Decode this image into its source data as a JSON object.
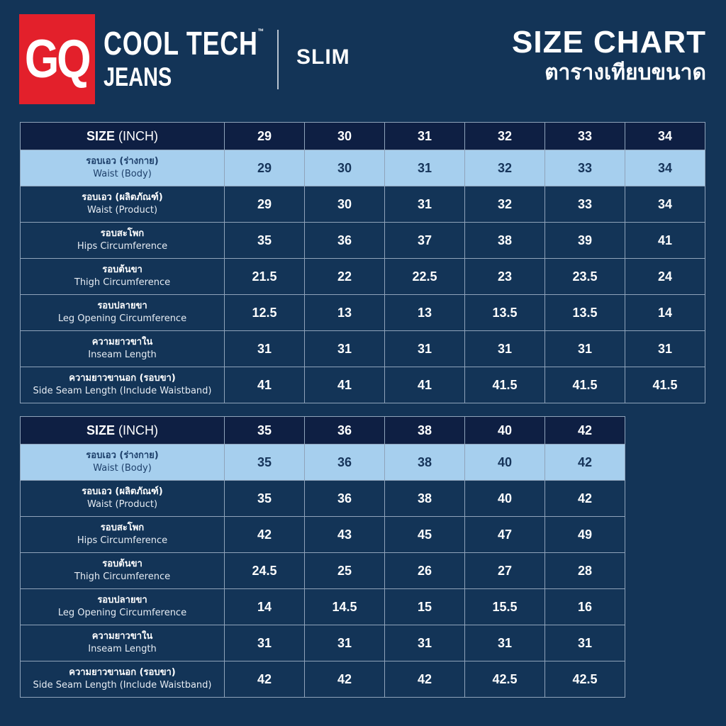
{
  "brand": {
    "logo": "GQ",
    "line1": "COOL TECH",
    "tm": "™",
    "line2": "JEANS",
    "fit": "SLIM"
  },
  "title": {
    "en": "SIZE CHART",
    "th": "ตารางเทียบขนาด"
  },
  "colors": {
    "background": "#133457",
    "header": "#0e1f43",
    "highlight": "#a6cfee",
    "logo_red": "#e3202b"
  },
  "tables": [
    {
      "size_label": "SIZE",
      "unit_label": " (INCH)",
      "sizes": [
        "29",
        "30",
        "31",
        "32",
        "33",
        "34"
      ],
      "rows": [
        {
          "th": "รอบเอว (ร่างกาย)",
          "en": "Waist (Body)",
          "values": [
            "29",
            "30",
            "31",
            "32",
            "33",
            "34"
          ],
          "highlight": true
        },
        {
          "th": "รอบเอว (ผลิตภัณฑ์)",
          "en": "Waist (Product)",
          "values": [
            "29",
            "30",
            "31",
            "32",
            "33",
            "34"
          ]
        },
        {
          "th": "รอบสะโพก",
          "en": "Hips Circumference",
          "values": [
            "35",
            "36",
            "37",
            "38",
            "39",
            "41"
          ]
        },
        {
          "th": "รอบต้นขา",
          "en": "Thigh Circumference",
          "values": [
            "21.5",
            "22",
            "22.5",
            "23",
            "23.5",
            "24"
          ]
        },
        {
          "th": "รอบปลายขา",
          "en": "Leg Opening Circumference",
          "values": [
            "12.5",
            "13",
            "13",
            "13.5",
            "13.5",
            "14"
          ]
        },
        {
          "th": "ความยาวขาใน",
          "en": "Inseam Length",
          "values": [
            "31",
            "31",
            "31",
            "31",
            "31",
            "31"
          ]
        },
        {
          "th": "ความยาวขานอก (รอบขา)",
          "en": "Side Seam Length (Include Waistband)",
          "values": [
            "41",
            "41",
            "41",
            "41.5",
            "41.5",
            "41.5"
          ]
        }
      ]
    },
    {
      "size_label": "SIZE",
      "unit_label": " (INCH)",
      "sizes": [
        "35",
        "36",
        "38",
        "40",
        "42"
      ],
      "rows": [
        {
          "th": "รอบเอว (ร่างกาย)",
          "en": "Waist (Body)",
          "values": [
            "35",
            "36",
            "38",
            "40",
            "42"
          ],
          "highlight": true
        },
        {
          "th": "รอบเอว (ผลิตภัณฑ์)",
          "en": "Waist (Product)",
          "values": [
            "35",
            "36",
            "38",
            "40",
            "42"
          ]
        },
        {
          "th": "รอบสะโพก",
          "en": "Hips Circumference",
          "values": [
            "42",
            "43",
            "45",
            "47",
            "49"
          ]
        },
        {
          "th": "รอบต้นขา",
          "en": "Thigh Circumference",
          "values": [
            "24.5",
            "25",
            "26",
            "27",
            "28"
          ]
        },
        {
          "th": "รอบปลายขา",
          "en": "Leg Opening Circumference",
          "values": [
            "14",
            "14.5",
            "15",
            "15.5",
            "16"
          ]
        },
        {
          "th": "ความยาวขาใน",
          "en": "Inseam Length",
          "values": [
            "31",
            "31",
            "31",
            "31",
            "31"
          ]
        },
        {
          "th": "ความยาวขานอก (รอบขา)",
          "en": "Side Seam Length (Include Waistband)",
          "values": [
            "42",
            "42",
            "42",
            "42.5",
            "42.5"
          ]
        }
      ]
    }
  ]
}
